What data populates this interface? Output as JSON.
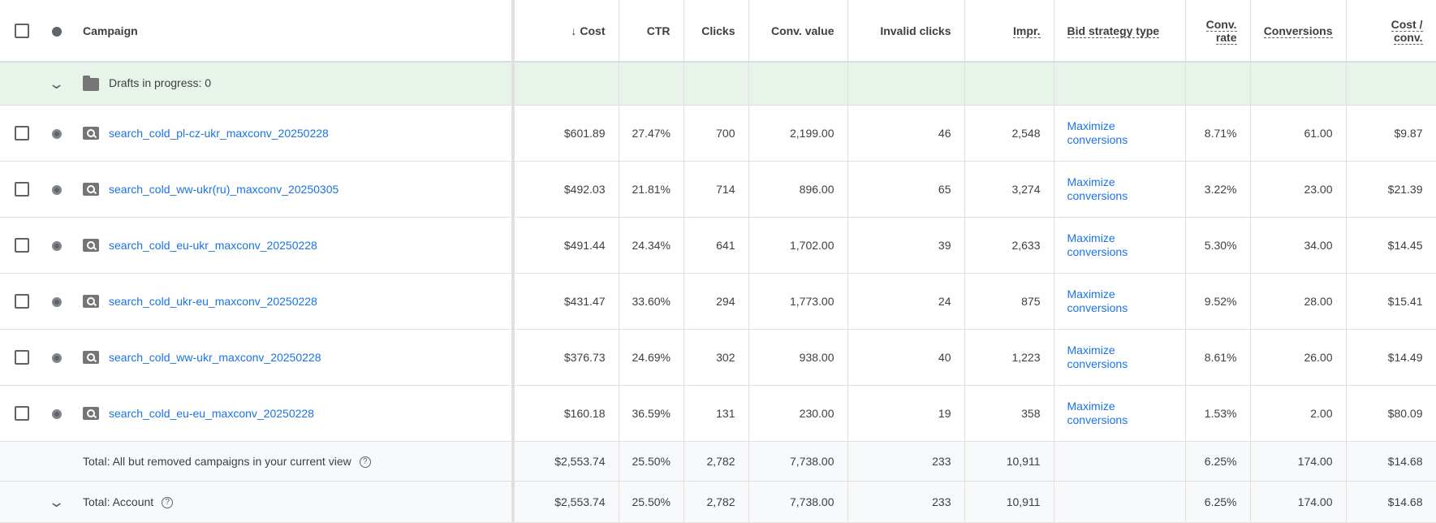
{
  "header": {
    "campaign": "Campaign",
    "cost": "Cost",
    "sort_arrow": "↓",
    "ctr": "CTR",
    "clicks": "Clicks",
    "conv_value": "Conv. value",
    "invalid_clicks": "Invalid clicks",
    "impr": "Impr.",
    "bid_strategy": "Bid strategy type",
    "conv_rate": "Conv. rate",
    "conversions": "Conversions",
    "cost_conv": "Cost / conv."
  },
  "draft": {
    "label": "Drafts in progress: 0"
  },
  "rows": [
    {
      "name": "search_cold_pl-cz-ukr_maxconv_20250228",
      "cost": "$601.89",
      "ctr": "27.47%",
      "clicks": "700",
      "conv_value": "2,199.00",
      "invalid": "46",
      "impr": "2,548",
      "bid": "Maximize conversions",
      "conv_rate": "8.71%",
      "conversions": "61.00",
      "cost_conv": "$9.87"
    },
    {
      "name": "search_cold_ww-ukr(ru)_maxconv_20250305",
      "cost": "$492.03",
      "ctr": "21.81%",
      "clicks": "714",
      "conv_value": "896.00",
      "invalid": "65",
      "impr": "3,274",
      "bid": "Maximize conversions",
      "conv_rate": "3.22%",
      "conversions": "23.00",
      "cost_conv": "$21.39"
    },
    {
      "name": "search_cold_eu-ukr_maxconv_20250228",
      "cost": "$491.44",
      "ctr": "24.34%",
      "clicks": "641",
      "conv_value": "1,702.00",
      "invalid": "39",
      "impr": "2,633",
      "bid": "Maximize conversions",
      "conv_rate": "5.30%",
      "conversions": "34.00",
      "cost_conv": "$14.45"
    },
    {
      "name": "search_cold_ukr-eu_maxconv_20250228",
      "cost": "$431.47",
      "ctr": "33.60%",
      "clicks": "294",
      "conv_value": "1,773.00",
      "invalid": "24",
      "impr": "875",
      "bid": "Maximize conversions",
      "conv_rate": "9.52%",
      "conversions": "28.00",
      "cost_conv": "$15.41"
    },
    {
      "name": "search_cold_ww-ukr_maxconv_20250228",
      "cost": "$376.73",
      "ctr": "24.69%",
      "clicks": "302",
      "conv_value": "938.00",
      "invalid": "40",
      "impr": "1,223",
      "bid": "Maximize conversions",
      "conv_rate": "8.61%",
      "conversions": "26.00",
      "cost_conv": "$14.49"
    },
    {
      "name": "search_cold_eu-eu_maxconv_20250228",
      "cost": "$160.18",
      "ctr": "36.59%",
      "clicks": "131",
      "conv_value": "230.00",
      "invalid": "19",
      "impr": "358",
      "bid": "Maximize conversions",
      "conv_rate": "1.53%",
      "conversions": "2.00",
      "cost_conv": "$80.09"
    }
  ],
  "total_view": {
    "label": "Total: All but removed campaigns in your current view",
    "cost": "$2,553.74",
    "ctr": "25.50%",
    "clicks": "2,782",
    "conv_value": "7,738.00",
    "invalid": "233",
    "impr": "10,911",
    "conv_rate": "6.25%",
    "conversions": "174.00",
    "cost_conv": "$14.68"
  },
  "total_account": {
    "label": "Total: Account",
    "cost": "$2,553.74",
    "ctr": "25.50%",
    "clicks": "2,782",
    "conv_value": "7,738.00",
    "invalid": "233",
    "impr": "10,911",
    "conv_rate": "6.25%",
    "conversions": "174.00",
    "cost_conv": "$14.68"
  },
  "icons": {
    "help": "?",
    "chevron": "⌄"
  },
  "colors": {
    "link": "#1a73e8",
    "draft_bg": "#e8f4e9",
    "total_bg": "#f8f9fa"
  }
}
